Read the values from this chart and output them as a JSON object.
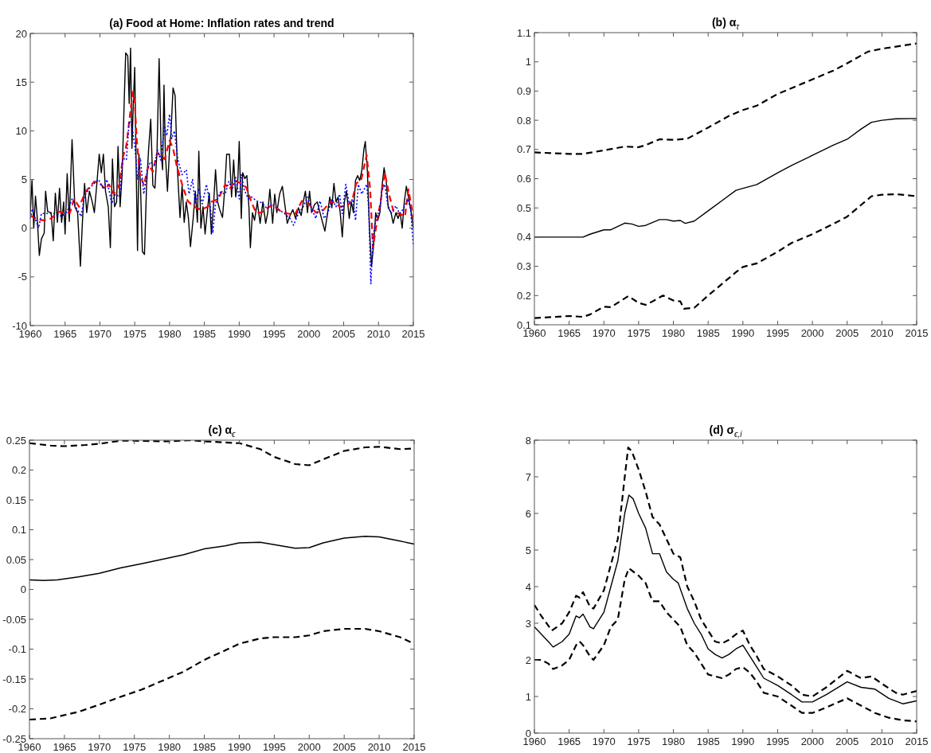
{
  "chart_data": [
    {
      "type": "line",
      "title": "(a) Food at Home: Inflation rates and trend",
      "xlim": [
        1960,
        2015
      ],
      "xticks": [
        1960,
        1965,
        1970,
        1975,
        1980,
        1985,
        1990,
        1995,
        2000,
        2005,
        2010,
        2015
      ],
      "ylim": [
        -10,
        20
      ],
      "yticks": [
        -10,
        -5,
        0,
        5,
        10,
        15,
        20
      ],
      "series": [
        {
          "color": "#000000",
          "line_style": "solid",
          "x": [
            1960,
            1960.25,
            1960.5,
            1960.75,
            1961,
            1961.3,
            1961.6,
            1962,
            1962.2,
            1962.5,
            1963,
            1963.3,
            1963.6,
            1963.9,
            1964.2,
            1964.5,
            1964.8,
            1965,
            1965.3,
            1965.6,
            1966,
            1966.4,
            1966.8,
            1967.2,
            1967.5,
            1967.8,
            1968.1,
            1968.5,
            1968.9,
            1969.2,
            1969.6,
            1969.9,
            1970.2,
            1970.5,
            1970.8,
            1971.2,
            1971.5,
            1971.8,
            1972.1,
            1972.4,
            1972.6,
            1972.9,
            1973.2,
            1973.5,
            1973.7,
            1974,
            1974.2,
            1974.4,
            1974.6,
            1974.8,
            1975,
            1975.2,
            1975.4,
            1975.6,
            1975.8,
            1976.1,
            1976.4,
            1976.7,
            1977,
            1977.3,
            1977.6,
            1977.9,
            1978.2,
            1978.5,
            1978.8,
            1979,
            1979.2,
            1979.4,
            1979.7,
            1980,
            1980.2,
            1980.5,
            1980.8,
            1981.1,
            1981.5,
            1981.8,
            1982.1,
            1982.4,
            1982.7,
            1983,
            1983.4,
            1983.7,
            1984,
            1984.2,
            1984.5,
            1984.8,
            1985.1,
            1985.4,
            1985.7,
            1986,
            1986.3,
            1986.6,
            1986.9,
            1987.2,
            1987.6,
            1987.9,
            1988.2,
            1988.6,
            1988.9,
            1989.2,
            1989.5,
            1989.8,
            1990,
            1990.3,
            1990.5,
            1990.8,
            1991.1,
            1991.4,
            1991.6,
            1991.9,
            1992.2,
            1992.6,
            1993,
            1993.4,
            1993.8,
            1994.1,
            1994.4,
            1994.8,
            1995.1,
            1995.4,
            1995.8,
            1996.2,
            1996.5,
            1996.9,
            1997.3,
            1997.7,
            1998.1,
            1998.5,
            1998.9,
            1999.2,
            1999.5,
            1999.8,
            2000.1,
            2000.4,
            2000.8,
            2001.2,
            2001.6,
            2002,
            2002.3,
            2002.7,
            2003,
            2003.3,
            2003.6,
            2003.9,
            2004.2,
            2004.5,
            2004.8,
            2005.1,
            2005.4,
            2005.8,
            2006.1,
            2006.4,
            2006.7,
            2007,
            2007.3,
            2007.6,
            2007.9,
            2008.1,
            2008.4,
            2008.7,
            2009,
            2009.3,
            2009.6,
            2009.9,
            2010.2,
            2010.5,
            2010.8,
            2011.1,
            2011.4,
            2011.8,
            2012.1,
            2012.5,
            2012.8,
            2013.1,
            2013.4,
            2013.7,
            2014,
            2014.3,
            2014.7,
            2015
          ],
          "values": [
            1.5,
            4.9,
            0,
            3.3,
            1.1,
            -2.8,
            -1.1,
            -0.5,
            3.8,
            1.7,
            1.6,
            -1.3,
            3.6,
            0.6,
            4.1,
            0.6,
            2.7,
            -0.6,
            5.6,
            0.7,
            9.1,
            2.2,
            1.6,
            -3.9,
            0.8,
            4.6,
            1.6,
            3.8,
            2.7,
            1.6,
            4.9,
            7.6,
            5.7,
            7.6,
            3.8,
            2.2,
            -2,
            7.1,
            2.2,
            2.7,
            8.4,
            2.2,
            5.7,
            13.3,
            18,
            17.7,
            12.8,
            18.5,
            8.2,
            13,
            16.5,
            6.5,
            -2.3,
            7.6,
            4.9,
            -2.4,
            -2.7,
            4.4,
            8.2,
            11.2,
            4.4,
            4.1,
            7.9,
            17.4,
            7.6,
            6,
            14.7,
            7.6,
            3.8,
            8.2,
            9.8,
            14.4,
            13.6,
            6.5,
            1.1,
            4.4,
            0.6,
            2.7,
            1.1,
            -1.9,
            1.1,
            3.8,
            0.6,
            7.9,
            0,
            2.2,
            -0.6,
            1.6,
            3.6,
            -0.6,
            2.2,
            6,
            2.7,
            1.9,
            1.1,
            3.8,
            7.6,
            7.6,
            3.2,
            7,
            3.2,
            4.9,
            8.9,
            1,
            5.7,
            5.1,
            5.4,
            2.1,
            -2,
            1.6,
            0.8,
            2.7,
            0.5,
            2.7,
            0.5,
            1.6,
            4,
            0.5,
            3.5,
            1.6,
            3.5,
            4.3,
            2.7,
            0.5,
            1.3,
            1.9,
            1,
            2.1,
            1.3,
            2.7,
            3.8,
            1.6,
            3.8,
            1.6,
            2.4,
            2.7,
            1.6,
            0.5,
            -0.3,
            1.6,
            3.2,
            2.1,
            4.6,
            2.7,
            3.2,
            1.6,
            -0.9,
            2.7,
            3.8,
            1,
            2.7,
            1.6,
            4.9,
            5.4,
            4.9,
            5.9,
            8.1,
            8.9,
            5.9,
            0,
            -3.9,
            -1.7,
            1.6,
            0.8,
            1.6,
            4.3,
            6.2,
            4.9,
            2.1,
            1.6,
            0.5,
            1.6,
            1,
            1.6,
            0,
            2.7,
            4.3,
            3.2,
            1.6,
            0
          ]
        },
        {
          "color": "#ff0000",
          "line_style": "dashed",
          "x": [
            1960,
            1961,
            1962,
            1963,
            1964,
            1965,
            1965.7,
            1966.3,
            1967,
            1968,
            1969.2,
            1970,
            1970.8,
            1971.3,
            1972,
            1972.8,
            1973.3,
            1973.8,
            1974.3,
            1974.7,
            1975,
            1975.3,
            1975.7,
            1976.3,
            1977,
            1977.6,
            1978.2,
            1978.8,
            1979.3,
            1980,
            1980.5,
            1981,
            1981.8,
            1982.6,
            1983.5,
            1984.5,
            1985.5,
            1986,
            1987,
            1988,
            1988.6,
            1989.4,
            1990.2,
            1991,
            1991.7,
            1992.4,
            1993.2,
            1994.3,
            1995,
            1996,
            1997,
            1998,
            1999,
            2000,
            2001,
            2002,
            2003.2,
            2004.5,
            2005.5,
            2006.2,
            2006.8,
            2007.5,
            2008.3,
            2008.8,
            2009.2,
            2009.8,
            2010.3,
            2010.9,
            2011.5,
            2012.2,
            2013,
            2013.8,
            2014.3,
            2015
          ],
          "values": [
            1.3,
            0.9,
            0.8,
            1,
            1.7,
            1.6,
            1.6,
            3,
            2.2,
            3.8,
            4.8,
            4.6,
            4,
            4.5,
            3.5,
            4.5,
            7.3,
            8.5,
            11.5,
            14,
            13,
            9,
            5.7,
            4.4,
            6.5,
            5.8,
            7.7,
            7.4,
            7.1,
            9,
            8.2,
            6.5,
            4.5,
            2.8,
            2.2,
            1.9,
            2.2,
            2.7,
            3,
            4.5,
            4,
            4.9,
            4.6,
            4.2,
            2.8,
            1.6,
            1.6,
            2.2,
            2.3,
            1.7,
            1.5,
            1.4,
            2.8,
            2.5,
            1.6,
            1.8,
            2.8,
            2.2,
            2.3,
            2.8,
            4.6,
            4.9,
            7.5,
            4,
            -2,
            0.8,
            2.7,
            5.7,
            3.5,
            1.6,
            1.5,
            1.2,
            4,
            1
          ]
        },
        {
          "color": "#0000ff",
          "line_style": "dotted",
          "x": [
            1960,
            1960.3,
            1960.7,
            1961.2,
            1961.6,
            1962.2,
            1963,
            1963.8,
            1964.5,
            1965.3,
            1966,
            1966.7,
            1967.3,
            1967.8,
            1968.5,
            1969.2,
            1969.8,
            1970.5,
            1971,
            1971.7,
            1972.2,
            1972.8,
            1973.3,
            1973.8,
            1974.2,
            1974.6,
            1975,
            1975.4,
            1975.8,
            1976.3,
            1976.8,
            1977.2,
            1977.8,
            1978.3,
            1978.7,
            1979.3,
            1979.6,
            1980,
            1980.3,
            1980.7,
            1981.2,
            1981.8,
            1982.4,
            1982.8,
            1983.3,
            1983.7,
            1984.2,
            1984.7,
            1985.3,
            1985.8,
            1986.2,
            1986.6,
            1987.3,
            1988,
            1988.5,
            1989,
            1989.5,
            1990,
            1990.3,
            1990.7,
            1991.3,
            1991.8,
            1992.5,
            1993.3,
            1994,
            1994.7,
            1995.5,
            1996.5,
            1997.3,
            1997.8,
            1998.5,
            1999.2,
            1999.8,
            2000.4,
            2001,
            2001.6,
            2002.2,
            2002.7,
            2003.3,
            2003.9,
            2004.4,
            2004.8,
            2005.3,
            2005.8,
            2006.3,
            2006.7,
            2007.1,
            2007.6,
            2008.3,
            2008.6,
            2008.9,
            2009.2,
            2009.6,
            2010.2,
            2010.5,
            2010.9,
            2011.3,
            2011.8,
            2012.5,
            2013,
            2013.6,
            2014.2,
            2014.6,
            2015
          ],
          "values": [
            1,
            2,
            1,
            0,
            1.5,
            1.5,
            1.5,
            1.5,
            1.2,
            1.7,
            3,
            2,
            1.2,
            3.3,
            4.1,
            4.6,
            5,
            4,
            5,
            2.5,
            3.5,
            3.2,
            7.2,
            7,
            11,
            10.5,
            8.5,
            5,
            7.2,
            3.5,
            6,
            6.8,
            6.5,
            8,
            7,
            10.5,
            9.5,
            11.7,
            9.2,
            10,
            7,
            5.5,
            6,
            3.5,
            5,
            2.5,
            4,
            2.5,
            4.5,
            2.5,
            -0.5,
            2.5,
            3.7,
            3.5,
            4.8,
            4,
            5.2,
            3,
            5.5,
            4,
            3,
            3.2,
            2.8,
            2.6,
            2,
            2.5,
            2,
            1.5,
            1,
            0.3,
            1.5,
            2.2,
            3.2,
            2,
            1,
            2.8,
            1,
            1.5,
            3,
            2.2,
            3.5,
            1.5,
            4.5,
            2.5,
            3,
            0.8,
            4.5,
            3.5,
            4.5,
            2,
            -5.7,
            -1,
            0.8,
            2,
            4,
            4.5,
            2.5,
            1.5,
            2.3,
            1.5,
            2,
            3,
            2,
            -1.8
          ]
        }
      ]
    },
    {
      "type": "line",
      "title": "(b) α$_{τ}$",
      "xlim": [
        1960,
        2015
      ],
      "xticks": [
        1960,
        1965,
        1970,
        1975,
        1980,
        1985,
        1990,
        1995,
        2000,
        2005,
        2010,
        2015
      ],
      "ylim": [
        0.1,
        1.1
      ],
      "yticks": [
        0.1,
        0.2,
        0.3,
        0.4,
        0.5,
        0.6,
        0.7,
        0.8,
        0.9,
        1,
        1.1
      ],
      "series": [
        {
          "color": "#000000",
          "line_style": "dashed",
          "x": [
            1960,
            1965,
            1967,
            1970,
            1973,
            1975,
            1976,
            1978,
            1980,
            1982,
            1985,
            1988,
            1990,
            1992,
            1995,
            1998,
            2000,
            2003,
            2005,
            2008,
            2010,
            2012,
            2015
          ],
          "values": [
            0.69,
            0.685,
            0.685,
            0.697,
            0.71,
            0.708,
            0.715,
            0.735,
            0.733,
            0.737,
            0.775,
            0.815,
            0.835,
            0.85,
            0.89,
            0.92,
            0.94,
            0.97,
            0.995,
            1.035,
            1.045,
            1.052,
            1.063
          ]
        },
        {
          "color": "#000000",
          "line_style": "solid",
          "x": [
            1960,
            1967,
            1968,
            1970,
            1971,
            1973,
            1974,
            1975,
            1976,
            1978,
            1979,
            1980,
            1981,
            1981.7,
            1983,
            1985,
            1987,
            1989,
            1990,
            1992,
            1995,
            1997,
            2000,
            2003,
            2005,
            2007,
            2008.5,
            2010,
            2012,
            2015
          ],
          "values": [
            0.4,
            0.4,
            0.41,
            0.425,
            0.425,
            0.448,
            0.445,
            0.437,
            0.44,
            0.46,
            0.46,
            0.455,
            0.457,
            0.447,
            0.455,
            0.49,
            0.525,
            0.56,
            0.567,
            0.58,
            0.62,
            0.645,
            0.68,
            0.715,
            0.735,
            0.77,
            0.793,
            0.8,
            0.805,
            0.806
          ]
        },
        {
          "color": "#000000",
          "line_style": "dashed",
          "x": [
            1960,
            1965,
            1967,
            1968,
            1970,
            1971,
            1973.5,
            1975,
            1976,
            1977,
            1978.5,
            1980,
            1981,
            1981.5,
            1983,
            1985,
            1987,
            1989,
            1990,
            1992,
            1995,
            1997,
            2000,
            2003,
            2005,
            2007,
            2008.5,
            2010,
            2012,
            2015
          ],
          "values": [
            0.123,
            0.13,
            0.127,
            0.135,
            0.162,
            0.16,
            0.198,
            0.175,
            0.168,
            0.18,
            0.2,
            0.183,
            0.18,
            0.155,
            0.158,
            0.2,
            0.24,
            0.28,
            0.298,
            0.31,
            0.35,
            0.38,
            0.41,
            0.445,
            0.47,
            0.51,
            0.54,
            0.545,
            0.547,
            0.54
          ]
        }
      ]
    },
    {
      "type": "line",
      "title": "(c) α$_{ϵ}$",
      "xlim": [
        1960,
        2015
      ],
      "xticks": [
        1960,
        1965,
        1970,
        1975,
        1980,
        1985,
        1990,
        1995,
        2000,
        2005,
        2010,
        2015
      ],
      "ylim": [
        -0.25,
        0.25
      ],
      "yticks": [
        -0.25,
        -0.2,
        -0.15,
        -0.1,
        -0.05,
        0,
        0.05,
        0.1,
        0.15,
        0.2,
        0.25
      ],
      "series": [
        {
          "color": "#000000",
          "line_style": "dashed",
          "x": [
            1960,
            1963,
            1965,
            1968,
            1970,
            1973,
            1975,
            1980,
            1983,
            1985,
            1990,
            1993,
            1995,
            1998,
            2000,
            2002,
            2005,
            2008,
            2010,
            2013,
            2015
          ],
          "values": [
            0.245,
            0.241,
            0.24,
            0.242,
            0.244,
            0.249,
            0.249,
            0.248,
            0.25,
            0.248,
            0.245,
            0.235,
            0.222,
            0.21,
            0.208,
            0.218,
            0.232,
            0.238,
            0.239,
            0.235,
            0.236
          ]
        },
        {
          "color": "#000000",
          "line_style": "solid",
          "x": [
            1960,
            1962,
            1964,
            1967,
            1970,
            1973,
            1976,
            1980,
            1982,
            1985,
            1988,
            1990,
            1993,
            1995,
            1998,
            2000,
            2002,
            2005,
            2008,
            2010,
            2013,
            2015
          ],
          "values": [
            0.016,
            0.015,
            0.016,
            0.021,
            0.027,
            0.036,
            0.043,
            0.053,
            0.058,
            0.068,
            0.073,
            0.078,
            0.079,
            0.075,
            0.069,
            0.07,
            0.078,
            0.086,
            0.089,
            0.088,
            0.081,
            0.076
          ]
        },
        {
          "color": "#000000",
          "line_style": "dashed",
          "x": [
            1960,
            1963,
            1967,
            1970,
            1973,
            1976,
            1980,
            1982,
            1985,
            1988,
            1990,
            1993,
            1995,
            1998,
            2000,
            2002,
            2005,
            2008,
            2010,
            2013,
            2015
          ],
          "values": [
            -0.218,
            -0.216,
            -0.205,
            -0.193,
            -0.18,
            -0.168,
            -0.148,
            -0.138,
            -0.118,
            -0.102,
            -0.091,
            -0.082,
            -0.08,
            -0.08,
            -0.077,
            -0.07,
            -0.066,
            -0.066,
            -0.07,
            -0.08,
            -0.091
          ]
        }
      ]
    },
    {
      "type": "line",
      "title": "(d) σ$_{ϵ,i}$",
      "xlim": [
        1960,
        2015
      ],
      "xticks": [
        1960,
        1965,
        1970,
        1975,
        1980,
        1985,
        1990,
        1995,
        2000,
        2005,
        2010,
        2015
      ],
      "ylim": [
        0,
        8
      ],
      "yticks": [
        0,
        1,
        2,
        3,
        4,
        5,
        6,
        7,
        8
      ],
      "series": [
        {
          "color": "#000000",
          "line_style": "dashed",
          "x": [
            1960,
            1961,
            1962.5,
            1964,
            1965,
            1966,
            1966.5,
            1967,
            1968,
            1968.5,
            1970,
            1971,
            1972,
            1973,
            1973.5,
            1974,
            1975,
            1976,
            1977,
            1978,
            1979,
            1980,
            1981,
            1982,
            1983,
            1984,
            1985,
            1986,
            1987,
            1988,
            1989,
            1990,
            1991,
            1992,
            1993,
            1995,
            1997,
            1998.5,
            2000,
            2002,
            2005,
            2007,
            2008.5,
            2010,
            2012,
            2013,
            2015
          ],
          "values": [
            3.5,
            3.2,
            2.8,
            3,
            3.3,
            3.75,
            3.7,
            3.85,
            3.45,
            3.4,
            3.9,
            4.6,
            5.3,
            7,
            7.8,
            7.7,
            7.2,
            6.6,
            5.9,
            5.7,
            5.3,
            4.9,
            4.8,
            4,
            3.6,
            3.1,
            2.8,
            2.5,
            2.45,
            2.55,
            2.7,
            2.8,
            2.4,
            2.1,
            1.75,
            1.55,
            1.3,
            1.05,
            1,
            1.25,
            1.7,
            1.5,
            1.55,
            1.35,
            1.1,
            1.05,
            1.15
          ]
        },
        {
          "color": "#000000",
          "line_style": "solid",
          "x": [
            1960,
            1961,
            1962,
            1962.7,
            1964,
            1965,
            1966,
            1966.5,
            1967,
            1968,
            1968.5,
            1970,
            1971,
            1972,
            1973,
            1973.6,
            1974.2,
            1975,
            1976,
            1977,
            1978,
            1979,
            1980,
            1980.7,
            1982,
            1983,
            1984,
            1985,
            1986,
            1987,
            1988,
            1989,
            1990,
            1991,
            1992,
            1993,
            1995,
            1997,
            1998.5,
            2000,
            2002,
            2005,
            2007,
            2009,
            2011,
            2013,
            2015
          ],
          "values": [
            2.9,
            2.7,
            2.5,
            2.35,
            2.5,
            2.7,
            3.2,
            3.15,
            3.25,
            2.9,
            2.85,
            3.3,
            4,
            4.7,
            6,
            6.5,
            6.4,
            6,
            5.6,
            4.9,
            4.9,
            4.4,
            4.2,
            4.1,
            3.4,
            3,
            2.7,
            2.3,
            2.15,
            2.05,
            2.15,
            2.3,
            2.4,
            2.1,
            1.8,
            1.5,
            1.3,
            1.05,
            0.85,
            0.85,
            1.05,
            1.4,
            1.25,
            1.2,
            0.95,
            0.8,
            0.88
          ]
        },
        {
          "color": "#000000",
          "line_style": "dashed",
          "x": [
            1960,
            1961,
            1962,
            1962.7,
            1964,
            1965,
            1966,
            1966.5,
            1967,
            1968,
            1968.5,
            1970,
            1971,
            1972,
            1973,
            1973.6,
            1975,
            1976,
            1977,
            1978,
            1979,
            1980,
            1981,
            1982,
            1983,
            1984,
            1985,
            1986,
            1987,
            1988,
            1989,
            1990,
            1991,
            1992,
            1993,
            1995,
            1997,
            1998.5,
            2000,
            2002,
            2005,
            2007,
            2009,
            2011,
            2013,
            2015
          ],
          "values": [
            2,
            2,
            1.9,
            1.75,
            1.85,
            2,
            2.4,
            2.5,
            2.4,
            2.1,
            2,
            2.4,
            2.9,
            3.1,
            4.2,
            4.5,
            4.3,
            4.1,
            3.6,
            3.6,
            3.3,
            3.1,
            2.9,
            2.4,
            2.2,
            1.9,
            1.6,
            1.55,
            1.5,
            1.6,
            1.75,
            1.8,
            1.65,
            1.4,
            1.1,
            1,
            0.75,
            0.55,
            0.55,
            0.7,
            0.95,
            0.75,
            0.55,
            0.42,
            0.35,
            0.32
          ]
        }
      ]
    }
  ]
}
